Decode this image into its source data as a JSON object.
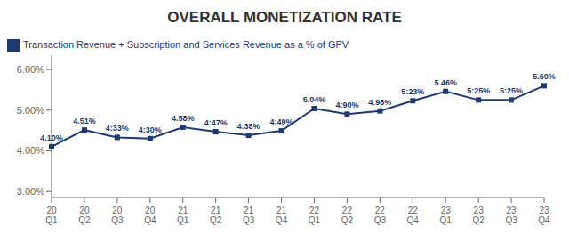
{
  "chart_data": {
    "type": "line",
    "title": "OVERALL MONETIZATION RATE",
    "categories": [
      "20\nQ1",
      "20\nQ2",
      "20\nQ3",
      "20\nQ4",
      "21\nQ1",
      "21\nQ2",
      "21\nQ3",
      "21\nQ4",
      "22\nQ1",
      "22\nQ2",
      "22\nQ3",
      "22\nQ4",
      "23\nQ1",
      "23\nQ2",
      "23\nQ3",
      "23\nQ4"
    ],
    "series": [
      {
        "name": "Transaction Revenue + Subscription and Services Revenue as a % of GPV",
        "color": "#1e3a6e",
        "marker": "square",
        "values": [
          4.1,
          4.51,
          4.33,
          4.3,
          4.58,
          4.47,
          4.38,
          4.49,
          5.04,
          4.9,
          4.98,
          5.23,
          5.46,
          5.25,
          5.25,
          5.6
        ],
        "value_labels": [
          "4.10%",
          "4.51%",
          "4:33%",
          "4:30%",
          "4.58%",
          "4:47%",
          "4:38%",
          "4:49%",
          "5.04%",
          "4:90%",
          "4:98%",
          "5:23%",
          "5.46%",
          "5:25%",
          "5:25%",
          "5.60%"
        ]
      }
    ],
    "ylim": [
      2.85,
      6.35
    ],
    "yticks": [
      {
        "value": 3.0,
        "label": "3.00%"
      },
      {
        "value": 4.0,
        "label": "4.00%"
      },
      {
        "value": 5.0,
        "label": "5.00%"
      },
      {
        "value": 6.0,
        "label": "6.00%"
      }
    ],
    "grid": false,
    "legend": "upper left",
    "data_labels": true
  }
}
